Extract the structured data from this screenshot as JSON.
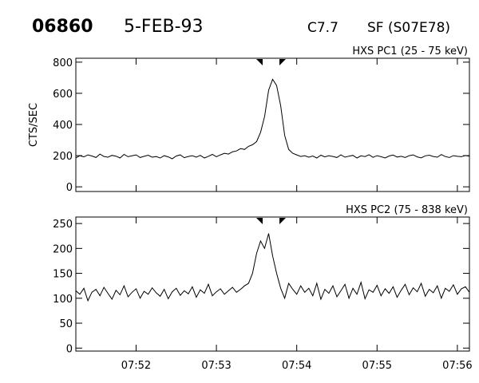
{
  "header": {
    "id": "06860",
    "date": "5-FEB-93",
    "class": "C7.7",
    "location": "SF (S07E78)"
  },
  "chart_data": [
    {
      "type": "line",
      "title": "HXS PC1 (25 - 75 keV)",
      "ylabel": "CTS/SEC",
      "color": "#000000",
      "x": [
        471.25,
        471.3,
        471.35,
        471.4,
        471.45,
        471.5,
        471.55,
        471.6,
        471.65,
        471.7,
        471.75,
        471.8,
        471.85,
        471.9,
        471.95,
        472,
        472.05,
        472.1,
        472.15,
        472.2,
        472.25,
        472.3,
        472.35,
        472.4,
        472.45,
        472.5,
        472.55,
        472.6,
        472.65,
        472.7,
        472.75,
        472.8,
        472.85,
        472.9,
        472.95,
        473,
        473.05,
        473.1,
        473.15,
        473.2,
        473.25,
        473.3,
        473.35,
        473.4,
        473.45,
        473.5,
        473.55,
        473.6,
        473.65,
        473.7,
        473.75,
        473.8,
        473.85,
        473.9,
        473.95,
        474,
        474.05,
        474.1,
        474.15,
        474.2,
        474.25,
        474.3,
        474.35,
        474.4,
        474.45,
        474.5,
        474.55,
        474.6,
        474.65,
        474.7,
        474.75,
        474.8,
        474.85,
        474.9,
        474.95,
        475,
        475.05,
        475.1,
        475.15,
        475.2,
        475.25,
        475.3,
        475.35,
        475.4,
        475.45,
        475.5,
        475.55,
        475.6,
        475.65,
        475.7,
        475.75,
        475.8,
        475.85,
        475.9,
        475.95,
        476,
        476.05,
        476.1,
        476.15
      ],
      "values": [
        185,
        200,
        192,
        205,
        198,
        188,
        210,
        195,
        190,
        202,
        197,
        185,
        208,
        193,
        199,
        205,
        188,
        196,
        203,
        190,
        194,
        185,
        200,
        192,
        180,
        198,
        205,
        187,
        195,
        200,
        190,
        202,
        185,
        196,
        208,
        193,
        205,
        215,
        210,
        225,
        230,
        245,
        240,
        260,
        270,
        290,
        350,
        450,
        620,
        690,
        650,
        520,
        330,
        240,
        215,
        205,
        195,
        200,
        190,
        198,
        185,
        203,
        192,
        200,
        195,
        188,
        205,
        190,
        197,
        202,
        185,
        199,
        194,
        206,
        189,
        200,
        193,
        185,
        198,
        204,
        191,
        196,
        188,
        200,
        205,
        192,
        186,
        199,
        203,
        195,
        190,
        207,
        194,
        188,
        200,
        196,
        193,
        201,
        197
      ],
      "xlim": [
        471.25,
        476.15
      ],
      "ylim": [
        -30,
        825
      ],
      "yticks": [
        0,
        200,
        400,
        600,
        800
      ]
    },
    {
      "type": "line",
      "title": "HXS PC2 (75 - 838 keV)",
      "color": "#000000",
      "x": [
        471.25,
        471.3,
        471.35,
        471.4,
        471.45,
        471.5,
        471.55,
        471.6,
        471.65,
        471.7,
        471.75,
        471.8,
        471.85,
        471.9,
        471.95,
        472,
        472.05,
        472.1,
        472.15,
        472.2,
        472.25,
        472.3,
        472.35,
        472.4,
        472.45,
        472.5,
        472.55,
        472.6,
        472.65,
        472.7,
        472.75,
        472.8,
        472.85,
        472.9,
        472.95,
        473,
        473.05,
        473.1,
        473.15,
        473.2,
        473.25,
        473.3,
        473.35,
        473.4,
        473.45,
        473.5,
        473.55,
        473.6,
        473.65,
        473.7,
        473.75,
        473.8,
        473.85,
        473.9,
        473.95,
        474,
        474.05,
        474.1,
        474.15,
        474.2,
        474.25,
        474.3,
        474.35,
        474.4,
        474.45,
        474.5,
        474.55,
        474.6,
        474.65,
        474.7,
        474.75,
        474.8,
        474.85,
        474.9,
        474.95,
        475,
        475.05,
        475.1,
        475.15,
        475.2,
        475.25,
        475.3,
        475.35,
        475.4,
        475.45,
        475.5,
        475.55,
        475.6,
        475.65,
        475.7,
        475.75,
        475.8,
        475.85,
        475.9,
        475.95,
        476,
        476.05,
        476.1,
        476.15
      ],
      "values": [
        115,
        108,
        120,
        95,
        112,
        118,
        105,
        122,
        110,
        98,
        116,
        107,
        125,
        103,
        112,
        119,
        100,
        114,
        108,
        121,
        111,
        104,
        118,
        99,
        113,
        120,
        106,
        115,
        109,
        123,
        102,
        117,
        110,
        128,
        105,
        113,
        119,
        108,
        115,
        122,
        112,
        118,
        125,
        130,
        150,
        190,
        215,
        200,
        230,
        185,
        150,
        120,
        100,
        130,
        118,
        108,
        125,
        112,
        120,
        105,
        130,
        98,
        118,
        110,
        125,
        103,
        115,
        128,
        100,
        120,
        108,
        132,
        99,
        117,
        112,
        126,
        105,
        119,
        110,
        123,
        102,
        116,
        128,
        107,
        121,
        113,
        130,
        104,
        118,
        111,
        125,
        100,
        120,
        114,
        127,
        108,
        119,
        123,
        112
      ],
      "xlim": [
        471.25,
        476.15
      ],
      "ylim": [
        -6,
        263
      ],
      "yticks": [
        0,
        50,
        100,
        150,
        200,
        250
      ],
      "xticks": [
        {
          "value": 472,
          "label": "07:52"
        },
        {
          "value": 473,
          "label": "07:53"
        },
        {
          "value": 474,
          "label": "07:54"
        },
        {
          "value": 475,
          "label": "07:55"
        },
        {
          "value": 476,
          "label": "07:56"
        }
      ]
    }
  ]
}
